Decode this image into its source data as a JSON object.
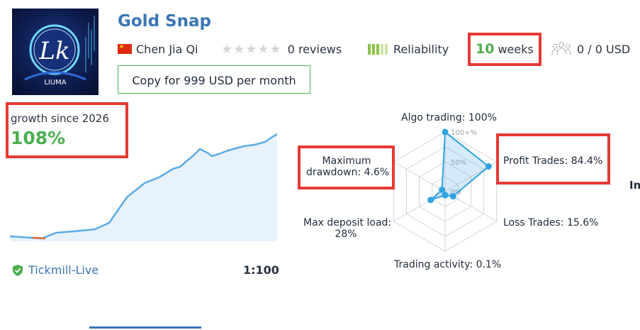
{
  "header": {
    "title": "Gold Snap",
    "author": "Chen Jia Qi",
    "reviews": "0 reviews",
    "reliability": "Reliability",
    "weeks_value": "10",
    "weeks_unit": "weeks",
    "subscribers": "0 / 0 USD",
    "logo_text": "LIUMA"
  },
  "copy_button": {
    "label": "Copy for 999 USD per month"
  },
  "growth": {
    "label": "growth since 2026",
    "value": "108%"
  },
  "account": {
    "broker": "Tickmill-Live",
    "leverage": "1:100"
  },
  "radar": {
    "algo_trading": "Algo trading: 100%",
    "profit_trades": "Profit Trades: 84.4%",
    "loss_trades": "Loss Trades: 15.6%",
    "trading_activity": "Trading activity: 0.1%",
    "max_deposit_load_1": "Max deposit load:",
    "max_deposit_load_2": "28%",
    "max_drawdown_1": "Maximum",
    "max_drawdown_2": "drawdown: 4.6%",
    "scale_100": "100+%",
    "scale_50": "50%",
    "scale_0": "0%"
  },
  "cut_text": "In",
  "chart_data": {
    "type": "radar",
    "axes": [
      "Algo trading",
      "Profit Trades",
      "Loss Trades",
      "Trading activity",
      "Max deposit load",
      "Maximum drawdown"
    ],
    "values": [
      100,
      84.4,
      15.6,
      0.1,
      28,
      4.6
    ]
  }
}
